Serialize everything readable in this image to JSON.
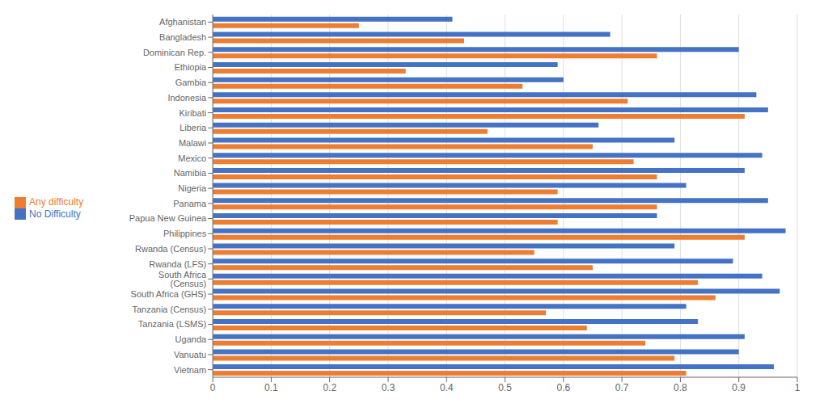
{
  "chart_data": {
    "type": "bar",
    "orientation": "horizontal",
    "categories": [
      "Afghanistan",
      "Bangladesh",
      "Dominican Rep.",
      "Ethiopia",
      "Gambia",
      "Indonesia",
      "Kiribati",
      "Liberia",
      "Malawi",
      "Mexico",
      "Namibia",
      "Nigeria",
      "Panama",
      "Papua New Guinea",
      "Philippines",
      "Rwanda (Census)",
      "Rwanda (LFS)",
      "South Africa (Census)",
      "South Africa (GHS)",
      "Tanzania (Census)",
      "Tanzania (LSMS)",
      "Uganda",
      "Vanuatu",
      "Vietnam"
    ],
    "series": [
      {
        "name": "No Difficulty",
        "color": "#4472C4",
        "values": [
          0.41,
          0.68,
          0.9,
          0.59,
          0.6,
          0.93,
          0.95,
          0.66,
          0.79,
          0.94,
          0.91,
          0.81,
          0.95,
          0.76,
          0.98,
          0.79,
          0.89,
          0.94,
          0.97,
          0.81,
          0.83,
          0.91,
          0.9,
          0.96
        ]
      },
      {
        "name": "Any difficulty",
        "color": "#ED7D31",
        "values": [
          0.25,
          0.43,
          0.76,
          0.33,
          0.53,
          0.71,
          0.91,
          0.47,
          0.65,
          0.72,
          0.76,
          0.59,
          0.76,
          0.59,
          0.91,
          0.55,
          0.65,
          0.83,
          0.86,
          0.57,
          0.64,
          0.74,
          0.79,
          0.81
        ]
      }
    ],
    "xlim": [
      0,
      1.0
    ],
    "xticks": [
      0,
      0.1,
      0.2,
      0.3,
      0.4,
      0.5,
      0.6,
      0.7,
      0.8,
      0.9,
      1
    ],
    "grid": true,
    "legend": "left"
  }
}
